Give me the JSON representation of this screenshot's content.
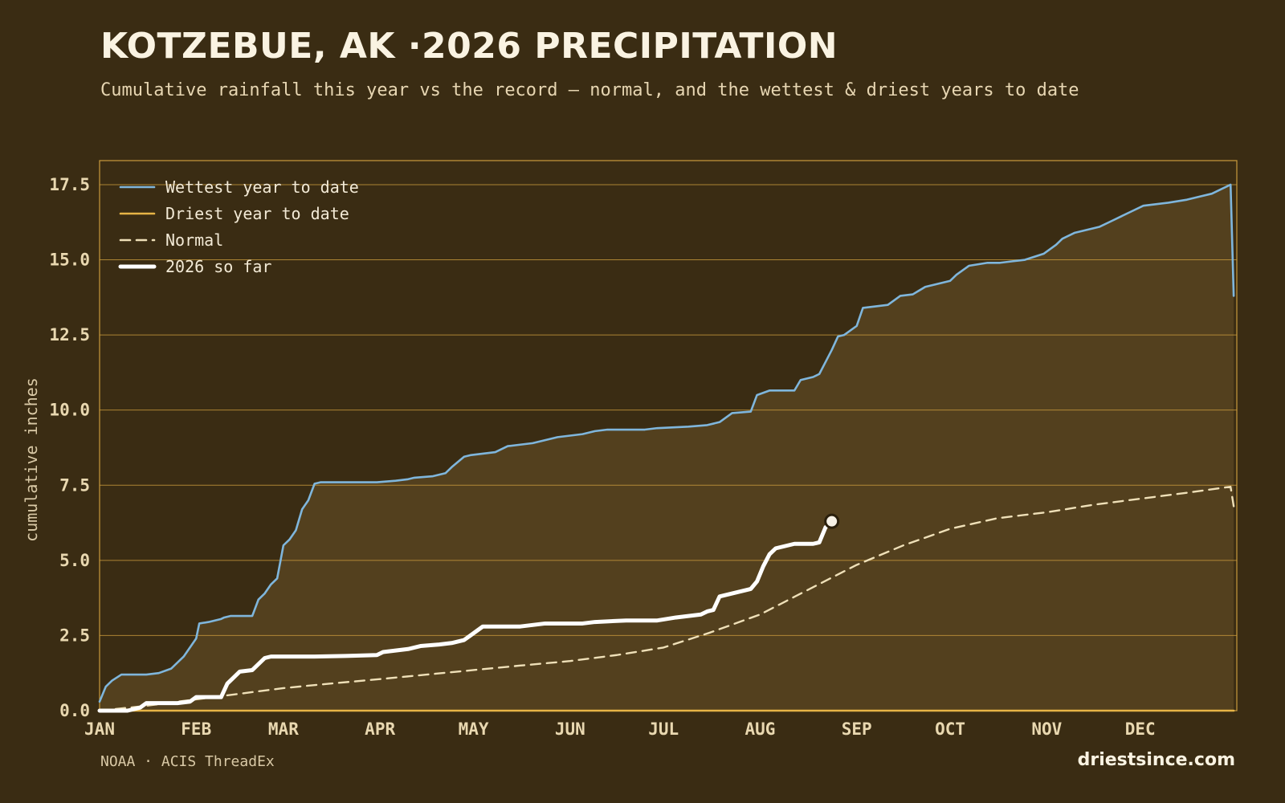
{
  "header": {
    "title": "KOTZEBUE, AK ·2026 PRECIPITATION",
    "subtitle": "Cumulative rainfall this year vs the record — normal, and the wettest & driest years to date"
  },
  "footer": {
    "source": "NOAA · ACIS ThreadEx",
    "brand": "driestsince.com"
  },
  "colors": {
    "background": "#3a2c13",
    "band_fill": "#53401e",
    "wettest": "#7fb6dc",
    "driest": "#e6b446",
    "normal": "#efe0b8",
    "current": "#ffffff",
    "grid": "#c99a3c"
  },
  "chart_data": {
    "type": "line",
    "title": "",
    "xlabel": "",
    "ylabel": "cumulative inches",
    "x_unit": "day of year",
    "xlim": [
      1,
      366
    ],
    "ylim": [
      0,
      18.3
    ],
    "y_ticks": [
      0.0,
      2.5,
      5.0,
      7.5,
      10.0,
      12.5,
      15.0,
      17.5
    ],
    "y_tick_labels": [
      "0.0",
      "2.5",
      "5.0",
      "7.5",
      "10.0",
      "12.5",
      "15.0",
      "17.5"
    ],
    "x_ticks": [
      1,
      32,
      60,
      91,
      121,
      152,
      182,
      213,
      244,
      274,
      305,
      335
    ],
    "x_tick_labels": [
      "JAN",
      "FEB",
      "MAR",
      "APR",
      "MAY",
      "JUN",
      "JUL",
      "AUG",
      "SEP",
      "OCT",
      "NOV",
      "DEC"
    ],
    "grid": "horizontal",
    "legend_position": "top-left",
    "series": [
      {
        "name": "Wettest year to date",
        "style": "solid",
        "x": [
          1,
          3,
          5,
          8,
          12,
          14,
          16,
          20,
          24,
          28,
          32,
          33,
          36,
          40,
          41,
          43,
          46,
          48,
          50,
          52,
          54,
          56,
          58,
          60,
          62,
          64,
          66,
          68,
          70,
          72,
          74,
          76,
          78,
          80,
          84,
          90,
          96,
          100,
          102,
          108,
          112,
          114,
          118,
          120,
          124,
          128,
          132,
          136,
          140,
          144,
          148,
          152,
          156,
          160,
          164,
          168,
          176,
          180,
          184,
          190,
          196,
          200,
          204,
          210,
          212,
          216,
          224,
          226,
          230,
          232,
          234,
          236,
          238,
          240,
          244,
          246,
          250,
          254,
          258,
          262,
          266,
          270,
          274,
          276,
          280,
          286,
          290,
          294,
          298,
          304,
          308,
          310,
          314,
          318,
          322,
          326,
          332,
          336,
          340,
          344,
          350,
          354,
          358,
          362,
          364,
          365
        ],
        "y": [
          0.3,
          0.8,
          1.0,
          1.2,
          1.2,
          1.2,
          1.2,
          1.25,
          1.4,
          1.8,
          2.4,
          2.9,
          2.95,
          3.05,
          3.1,
          3.15,
          3.15,
          3.15,
          3.15,
          3.7,
          3.9,
          4.2,
          4.4,
          5.5,
          5.7,
          6.0,
          6.7,
          7.0,
          7.55,
          7.6,
          7.6,
          7.6,
          7.6,
          7.6,
          7.6,
          7.6,
          7.65,
          7.7,
          7.75,
          7.8,
          7.9,
          8.1,
          8.45,
          8.5,
          8.55,
          8.6,
          8.8,
          8.85,
          8.9,
          9.0,
          9.1,
          9.15,
          9.2,
          9.3,
          9.35,
          9.35,
          9.35,
          9.4,
          9.42,
          9.45,
          9.5,
          9.6,
          9.9,
          9.95,
          10.5,
          10.65,
          10.65,
          11.0,
          11.1,
          11.2,
          11.6,
          12.0,
          12.45,
          12.5,
          12.8,
          13.4,
          13.45,
          13.5,
          13.8,
          13.85,
          14.1,
          14.2,
          14.3,
          14.5,
          14.8,
          14.9,
          14.9,
          14.95,
          15.0,
          15.2,
          15.5,
          15.7,
          15.9,
          16.0,
          16.1,
          16.3,
          16.6,
          16.8,
          16.85,
          16.9,
          17.0,
          17.1,
          17.2,
          17.4,
          17.5,
          13.8
        ]
      },
      {
        "name": "Driest year to date",
        "style": "solid",
        "x": [
          1,
          60,
          120,
          180,
          240,
          300,
          365
        ],
        "y": [
          0.0,
          0.0,
          0.0,
          0.0,
          0.0,
          0.0,
          0.0
        ]
      },
      {
        "name": "Normal",
        "style": "dashed",
        "x": [
          1,
          15,
          30,
          45,
          60,
          75,
          91,
          106,
          121,
          136,
          152,
          167,
          182,
          197,
          213,
          228,
          244,
          259,
          274,
          289,
          305,
          320,
          335,
          350,
          364,
          365
        ],
        "y": [
          0.0,
          0.15,
          0.35,
          0.55,
          0.75,
          0.9,
          1.05,
          1.2,
          1.35,
          1.5,
          1.65,
          1.85,
          2.1,
          2.6,
          3.2,
          4.0,
          4.85,
          5.5,
          6.05,
          6.4,
          6.6,
          6.85,
          7.05,
          7.25,
          7.45,
          6.8
        ]
      },
      {
        "name": "2026 so far",
        "style": "solid-thick",
        "x": [
          1,
          10,
          14,
          16,
          20,
          26,
          30,
          32,
          34,
          38,
          40,
          42,
          44,
          46,
          50,
          54,
          56,
          58,
          60,
          64,
          70,
          80,
          90,
          92,
          96,
          100,
          104,
          110,
          114,
          118,
          120,
          122,
          124,
          126,
          130,
          136,
          140,
          144,
          150,
          156,
          160,
          170,
          175,
          180,
          186,
          190,
          194,
          196,
          198,
          200,
          202,
          204,
          206,
          208,
          210,
          212,
          214,
          216,
          218,
          220,
          222,
          224,
          226,
          230,
          232,
          234,
          236
        ],
        "y": [
          0.0,
          0.0,
          0.1,
          0.25,
          0.25,
          0.25,
          0.3,
          0.45,
          0.45,
          0.45,
          0.45,
          0.9,
          1.1,
          1.3,
          1.35,
          1.75,
          1.8,
          1.8,
          1.8,
          1.8,
          1.8,
          1.82,
          1.85,
          1.95,
          2.0,
          2.05,
          2.15,
          2.2,
          2.25,
          2.35,
          2.5,
          2.65,
          2.8,
          2.8,
          2.8,
          2.8,
          2.85,
          2.9,
          2.9,
          2.9,
          2.95,
          3.0,
          3.0,
          3.0,
          3.1,
          3.15,
          3.2,
          3.3,
          3.35,
          3.8,
          3.85,
          3.9,
          3.95,
          4.0,
          4.05,
          4.3,
          4.8,
          5.2,
          5.4,
          5.45,
          5.5,
          5.55,
          5.55,
          5.55,
          5.6,
          6.1,
          6.3
        ]
      }
    ]
  }
}
